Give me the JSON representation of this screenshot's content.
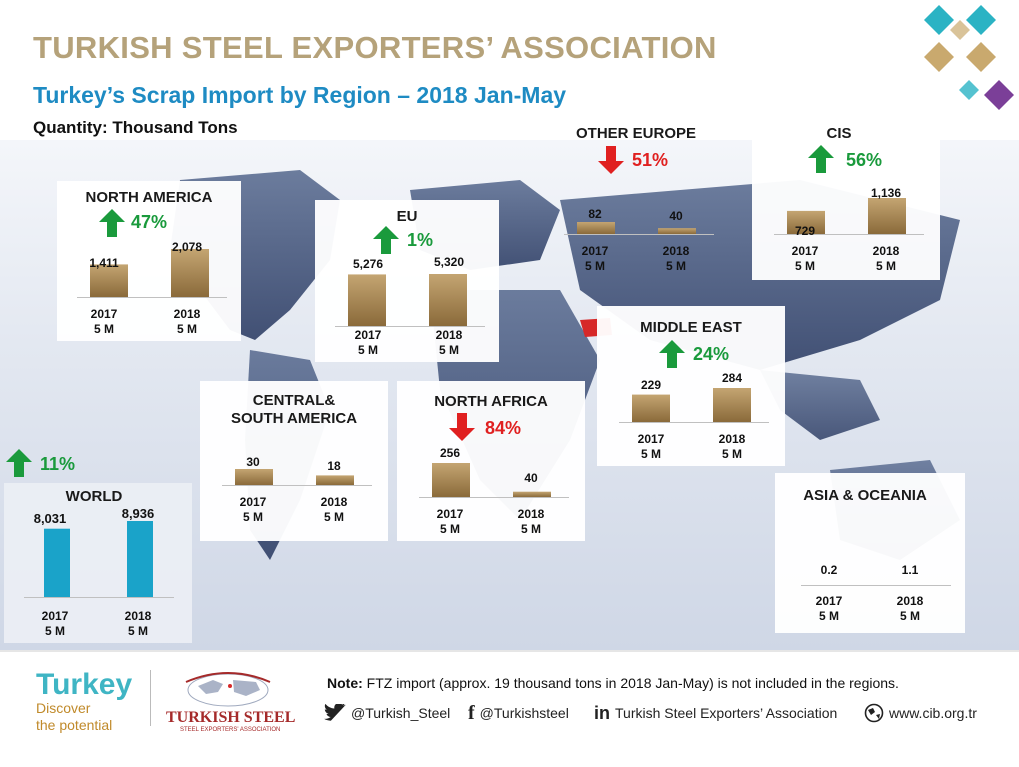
{
  "header": {
    "title": "TURKISH STEEL EXPORTERS’ ASSOCIATION",
    "subtitle": "Turkey’s Scrap Import by Region – 2018 Jan-May",
    "unit": "Quantity: Thousand Tons"
  },
  "colors": {
    "title": "#b5a27a",
    "subtitle": "#1e8bc3",
    "region_bar": "#a8854f",
    "world_bar": "#1aa3c9",
    "increase": "#1a9a3c",
    "decrease": "#e02020"
  },
  "chart_data": [
    {
      "type": "bar",
      "title": "NORTH AMERICA",
      "categories": [
        "2017\n5 M",
        "2018\n5 M"
      ],
      "values": [
        1411,
        2078
      ],
      "value_labels": [
        "1,411",
        "2,078"
      ],
      "change": "47%",
      "direction": "up"
    },
    {
      "type": "bar",
      "title": "EU",
      "categories": [
        "2017\n5 M",
        "2018\n5 M"
      ],
      "values": [
        5276,
        5320
      ],
      "value_labels": [
        "5,276",
        "5,320"
      ],
      "change": "1%",
      "direction": "up"
    },
    {
      "type": "bar",
      "title": "OTHER EUROPE",
      "categories": [
        "2017\n5 M",
        "2018\n5 M"
      ],
      "values": [
        82,
        40
      ],
      "value_labels": [
        "82",
        "40"
      ],
      "change": "51%",
      "direction": "down"
    },
    {
      "type": "bar",
      "title": "CIS",
      "categories": [
        "2017\n5 M",
        "2018\n5 M"
      ],
      "values": [
        729,
        1136
      ],
      "value_labels": [
        "729",
        "1,136"
      ],
      "change": "56%",
      "direction": "up"
    },
    {
      "type": "bar",
      "title": "MIDDLE EAST",
      "categories": [
        "2017\n5 M",
        "2018\n5 M"
      ],
      "values": [
        229,
        284
      ],
      "value_labels": [
        "229",
        "284"
      ],
      "change": "24%",
      "direction": "up"
    },
    {
      "type": "bar",
      "title": "CENTRAL&\nSOUTH AMERICA",
      "categories": [
        "2017\n5 M",
        "2018\n5 M"
      ],
      "values": [
        30,
        18
      ],
      "value_labels": [
        "30",
        "18"
      ],
      "change": "",
      "direction": ""
    },
    {
      "type": "bar",
      "title": "NORTH AFRICA",
      "categories": [
        "2017\n5 M",
        "2018\n5 M"
      ],
      "values": [
        256,
        40
      ],
      "value_labels": [
        "256",
        "40"
      ],
      "change": "84%",
      "direction": "down"
    },
    {
      "type": "bar",
      "title": "ASIA & OCEANIA",
      "categories": [
        "2017\n5 M",
        "2018\n5 M"
      ],
      "values": [
        0.2,
        1.1
      ],
      "value_labels": [
        "0.2",
        "1.1"
      ],
      "change": "",
      "direction": ""
    },
    {
      "type": "bar",
      "title": "WORLD",
      "categories": [
        "2017\n5 M",
        "2018\n5 M"
      ],
      "values": [
        8031,
        8936
      ],
      "value_labels": [
        "8,031",
        "8,936"
      ],
      "change": "11%",
      "direction": "up"
    }
  ],
  "footer": {
    "note_label": "Note:",
    "note_text": " FTZ import (approx. 19 thousand tons in 2018 Jan-May) is not included in the regions.",
    "twitter": "@Turkish_Steel",
    "facebook": "@Turkishsteel",
    "linkedin": "Turkish Steel Exporters’ Association",
    "website": "www.cib.org.tr",
    "brand_turkey": "Turkey",
    "brand_tagline": "Discover\nthe potential",
    "brand_tsea": "TURKISH STEEL",
    "brand_tsea_sub": "STEEL EXPORTERS' ASSOCIATION"
  },
  "icons": [
    "twitter-icon",
    "facebook-icon",
    "linkedin-icon",
    "globe-icon",
    "up-arrow-icon",
    "down-arrow-icon"
  ]
}
